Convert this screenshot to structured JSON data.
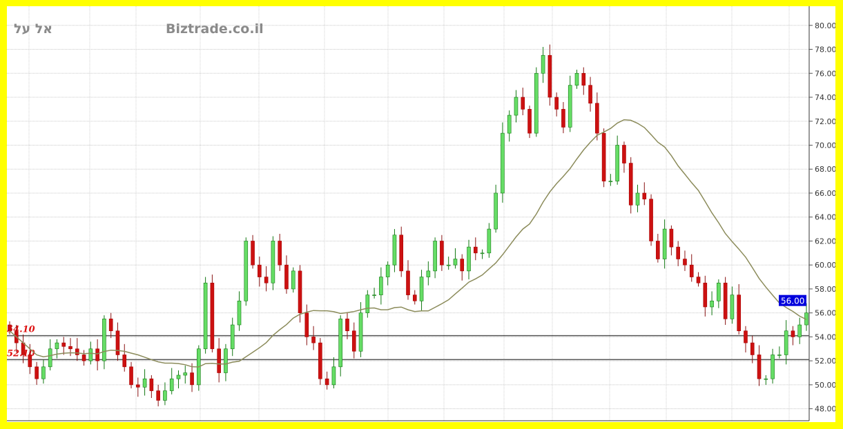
{
  "watermark": {
    "hebrew": "אל על",
    "site": "Biztrade.co.il"
  },
  "colors": {
    "up": "#66dd66",
    "down": "#cc1111",
    "ma": "#8b8b5a",
    "level": "#555555",
    "level_label": "#dd1111",
    "price_tag": "#0000dd",
    "frame": "#ffff00"
  },
  "chart_data": {
    "type": "candlestick",
    "title": "",
    "ylim": [
      47,
      81.6
    ],
    "y_ticks": [
      "48.00",
      "50.00",
      "52.00",
      "54.00",
      "56.00",
      "58.00",
      "60.00",
      "62.00",
      "64.00",
      "66.00",
      "68.00",
      "70.00",
      "72.00",
      "74.00",
      "76.00",
      "78.00",
      "80.00"
    ],
    "grid": true,
    "moving_average_period": 20,
    "horizontal_levels": [
      {
        "value": 54.1,
        "label": "54.10"
      },
      {
        "value": 52.1,
        "label": "52.10"
      }
    ],
    "last_price": {
      "value": 56.0,
      "label": "56.00"
    },
    "close": [
      54.5,
      53.5,
      52.5,
      51.5,
      50.5,
      51.5,
      53,
      53.5,
      53.2,
      53,
      52.5,
      52,
      53,
      52,
      55.5,
      54.5,
      52.5,
      51.5,
      50,
      49.8,
      50.5,
      49.5,
      48.7,
      49.5,
      50.5,
      50.8,
      51,
      50,
      53,
      58.5,
      53,
      51,
      53,
      55,
      57,
      62,
      60,
      59,
      58.5,
      62,
      60,
      58,
      59.5,
      56,
      54,
      53.5,
      50.5,
      50,
      51.5,
      55.5,
      54.5,
      52.8,
      56,
      57.5,
      57.5,
      59,
      60,
      62.5,
      59.5,
      57.5,
      57,
      59,
      59.5,
      62,
      60,
      60,
      60.5,
      59.5,
      61.5,
      61,
      61,
      63,
      66,
      71,
      72.5,
      74,
      73,
      71,
      76,
      77.5,
      74,
      73,
      71.5,
      75,
      76,
      75,
      73.5,
      71,
      67,
      67,
      70,
      68.5,
      65,
      66,
      65.5,
      62,
      60.5,
      63,
      61.5,
      60.5,
      60,
      59,
      58.5,
      56.5,
      57,
      58.5,
      55.5,
      57.5,
      54.5,
      53.5,
      52.5,
      50.5,
      50.5,
      52.5,
      52.5,
      54.5,
      54,
      55,
      56
    ]
  }
}
